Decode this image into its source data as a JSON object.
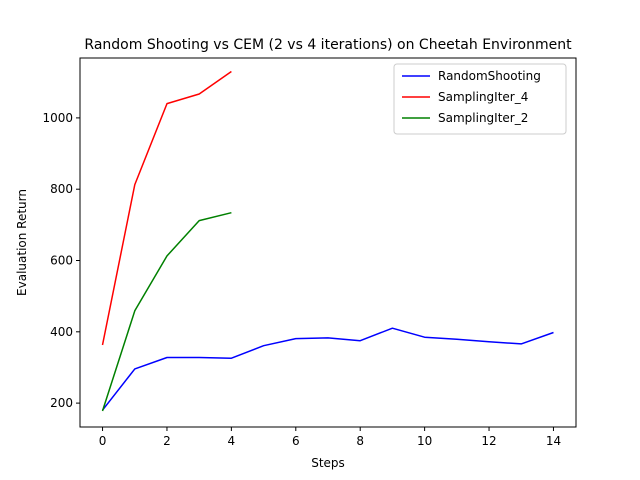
{
  "chart_data": {
    "type": "line",
    "title": "Random Shooting vs CEM (2 vs 4 iterations) on Cheetah Environment",
    "xlabel": "Steps",
    "ylabel": "Evaluation Return",
    "xlim": [
      -0.7,
      14.7
    ],
    "ylim": [
      133,
      1168
    ],
    "xticks": [
      0,
      2,
      4,
      6,
      8,
      10,
      12,
      14
    ],
    "yticks": [
      200,
      400,
      600,
      800,
      1000
    ],
    "grid": false,
    "legend_position": "top-right",
    "series": [
      {
        "name": "RandomShooting",
        "color": "#0000ff",
        "x": [
          0,
          1,
          2,
          3,
          4,
          5,
          6,
          7,
          8,
          9,
          10,
          11,
          12,
          13,
          14
        ],
        "y": [
          180,
          296,
          328,
          328,
          326,
          361,
          381,
          383,
          375,
          410,
          385,
          379,
          372,
          366,
          398
        ]
      },
      {
        "name": "SamplingIter_4",
        "color": "#ff0000",
        "x": [
          0,
          1,
          2,
          3,
          4
        ],
        "y": [
          363,
          813,
          1040,
          1067,
          1130
        ]
      },
      {
        "name": "SamplingIter_2",
        "color": "#008000",
        "x": [
          0,
          1,
          2,
          3,
          4
        ],
        "y": [
          178,
          459,
          613,
          712,
          734
        ]
      }
    ]
  }
}
